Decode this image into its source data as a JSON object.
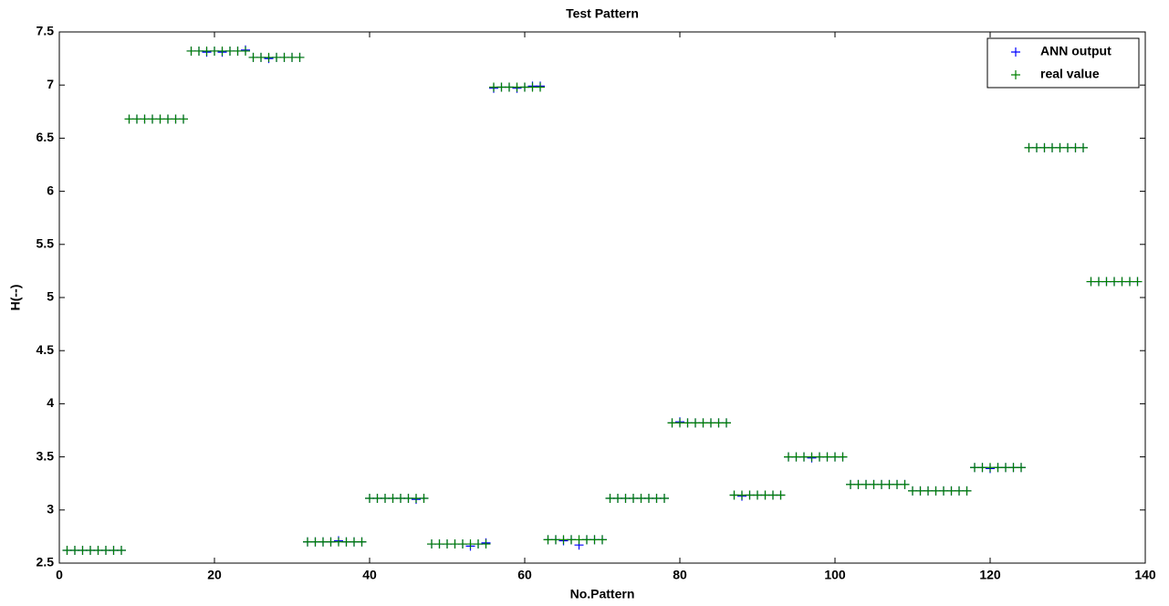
{
  "chart_data": {
    "type": "scatter",
    "title": "Test Pattern",
    "x_label": "No.Pattern",
    "y_label": "H(--)",
    "xlim": [
      0,
      140
    ],
    "xticks": [
      0,
      20,
      40,
      60,
      80,
      100,
      120,
      140
    ],
    "ylim": [
      2.5,
      7.5
    ],
    "yticks": [
      2.5,
      3,
      3.5,
      4,
      4.5,
      5,
      5.5,
      6,
      6.5,
      7,
      7.5
    ],
    "legend": "upper right",
    "marker": "+",
    "x": [
      1,
      2,
      3,
      4,
      5,
      6,
      7,
      8,
      9,
      10,
      11,
      12,
      13,
      14,
      15,
      16,
      17,
      18,
      19,
      20,
      21,
      22,
      23,
      24,
      25,
      26,
      27,
      28,
      29,
      30,
      31,
      32,
      33,
      34,
      35,
      36,
      37,
      38,
      39,
      40,
      41,
      42,
      43,
      44,
      45,
      46,
      47,
      48,
      49,
      50,
      51,
      52,
      53,
      54,
      55,
      56,
      57,
      58,
      59,
      60,
      61,
      62,
      63,
      64,
      65,
      66,
      67,
      68,
      69,
      70,
      71,
      72,
      73,
      74,
      75,
      76,
      77,
      78,
      79,
      80,
      81,
      82,
      83,
      84,
      85,
      86,
      87,
      88,
      89,
      90,
      91,
      92,
      93,
      94,
      95,
      96,
      97,
      98,
      99,
      100,
      101,
      102,
      103,
      104,
      105,
      106,
      107,
      108,
      109,
      110,
      111,
      112,
      113,
      114,
      115,
      116,
      117,
      118,
      119,
      120,
      121,
      122,
      123,
      124,
      125,
      126,
      127,
      128,
      129,
      130,
      131,
      132,
      133,
      134,
      135,
      136,
      137,
      138,
      139
    ],
    "series": [
      {
        "name": "ANN output",
        "color": "#0000ff",
        "values": [
          2.62,
          2.62,
          2.62,
          2.62,
          2.62,
          2.62,
          2.62,
          2.62,
          6.68,
          6.68,
          6.68,
          6.68,
          6.68,
          6.68,
          6.68,
          6.68,
          7.32,
          7.32,
          7.31,
          7.32,
          7.31,
          7.32,
          7.32,
          7.33,
          7.26,
          7.26,
          7.25,
          7.26,
          7.26,
          7.26,
          7.26,
          2.7,
          2.7,
          2.7,
          2.7,
          2.71,
          2.7,
          2.7,
          2.7,
          3.11,
          3.11,
          3.11,
          3.11,
          3.11,
          3.11,
          3.1,
          3.11,
          2.68,
          2.68,
          2.68,
          2.68,
          2.68,
          2.66,
          2.68,
          2.69,
          6.97,
          6.98,
          6.98,
          6.97,
          6.98,
          6.99,
          6.99,
          2.72,
          2.72,
          2.71,
          2.72,
          2.67,
          2.72,
          2.72,
          2.72,
          3.11,
          3.11,
          3.11,
          3.11,
          3.11,
          3.11,
          3.11,
          3.11,
          3.82,
          3.83,
          3.82,
          3.82,
          3.82,
          3.82,
          3.82,
          3.82,
          3.14,
          3.13,
          3.14,
          3.14,
          3.14,
          3.14,
          3.14,
          3.5,
          3.5,
          3.5,
          3.49,
          3.5,
          3.5,
          3.5,
          3.5,
          3.24,
          3.24,
          3.24,
          3.24,
          3.24,
          3.24,
          3.24,
          3.24,
          3.18,
          3.18,
          3.18,
          3.18,
          3.18,
          3.18,
          3.18,
          3.18,
          3.4,
          3.4,
          3.39,
          3.4,
          3.4,
          3.4,
          3.4,
          6.41,
          6.41,
          6.41,
          6.41,
          6.41,
          6.41,
          6.41,
          6.41,
          5.15,
          5.15,
          5.15,
          5.15,
          5.15,
          5.15,
          5.15
        ]
      },
      {
        "name": "real value",
        "color": "#008000",
        "values": [
          2.62,
          2.62,
          2.62,
          2.62,
          2.62,
          2.62,
          2.62,
          2.62,
          6.68,
          6.68,
          6.68,
          6.68,
          6.68,
          6.68,
          6.68,
          6.68,
          7.32,
          7.32,
          7.32,
          7.32,
          7.32,
          7.32,
          7.32,
          7.32,
          7.26,
          7.26,
          7.26,
          7.26,
          7.26,
          7.26,
          7.26,
          2.7,
          2.7,
          2.7,
          2.7,
          2.7,
          2.7,
          2.7,
          2.7,
          3.11,
          3.11,
          3.11,
          3.11,
          3.11,
          3.11,
          3.11,
          3.11,
          2.68,
          2.68,
          2.68,
          2.68,
          2.68,
          2.68,
          2.68,
          2.68,
          6.98,
          6.98,
          6.98,
          6.98,
          6.98,
          6.98,
          6.98,
          2.72,
          2.72,
          2.72,
          2.72,
          2.72,
          2.72,
          2.72,
          2.72,
          3.11,
          3.11,
          3.11,
          3.11,
          3.11,
          3.11,
          3.11,
          3.11,
          3.82,
          3.82,
          3.82,
          3.82,
          3.82,
          3.82,
          3.82,
          3.82,
          3.14,
          3.14,
          3.14,
          3.14,
          3.14,
          3.14,
          3.14,
          3.5,
          3.5,
          3.5,
          3.5,
          3.5,
          3.5,
          3.5,
          3.5,
          3.24,
          3.24,
          3.24,
          3.24,
          3.24,
          3.24,
          3.24,
          3.24,
          3.18,
          3.18,
          3.18,
          3.18,
          3.18,
          3.18,
          3.18,
          3.18,
          3.4,
          3.4,
          3.4,
          3.4,
          3.4,
          3.4,
          3.4,
          6.41,
          6.41,
          6.41,
          6.41,
          6.41,
          6.41,
          6.41,
          6.41,
          5.15,
          5.15,
          5.15,
          5.15,
          5.15,
          5.15,
          5.15
        ]
      }
    ]
  }
}
